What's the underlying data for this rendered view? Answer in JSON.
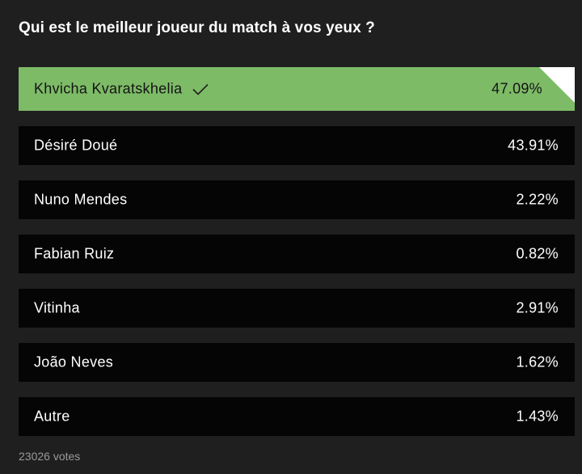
{
  "poll": {
    "question": "Qui est le meilleur joueur du match à vos yeux ?",
    "options": [
      {
        "label": "Khvicha Kvaratskhelia",
        "percent": "47.09%",
        "selected": true
      },
      {
        "label": "Désiré Doué",
        "percent": "43.91%",
        "selected": false
      },
      {
        "label": "Nuno Mendes",
        "percent": "2.22%",
        "selected": false
      },
      {
        "label": "Fabian Ruiz",
        "percent": "0.82%",
        "selected": false
      },
      {
        "label": "Vitinha",
        "percent": "2.91%",
        "selected": false
      },
      {
        "label": "João Neves",
        "percent": "1.62%",
        "selected": false
      },
      {
        "label": "Autre",
        "percent": "1.43%",
        "selected": false
      }
    ],
    "votes": "23026 votes"
  },
  "colors": {
    "background": "#1f1f1f",
    "option_background": "#050505",
    "selected_background": "#7dbb67",
    "votes_text": "#9a9a9a"
  },
  "icons": {
    "selected_marker": "check-icon",
    "selected_corner": "corner-fold-icon"
  }
}
